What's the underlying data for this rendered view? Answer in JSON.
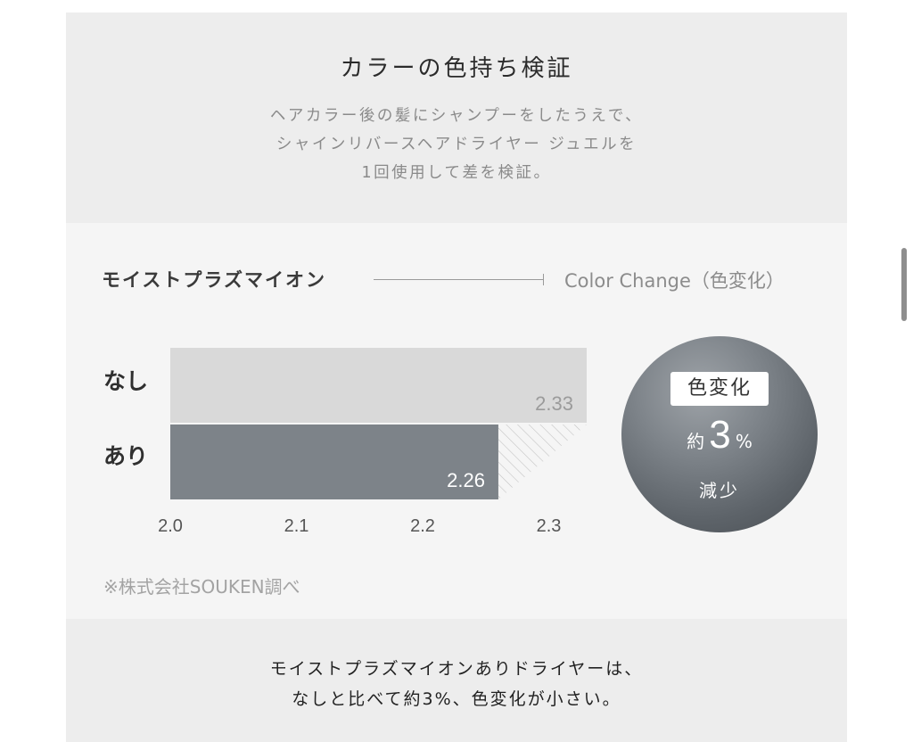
{
  "header": {
    "title": "カラーの色持ち検証",
    "subtitle_lines": [
      "ヘアカラー後の髪にシャンプーをしたうえで、",
      "シャインリバースヘアドライヤー ジュエルを",
      "1回使用して差を検証。"
    ]
  },
  "legend": {
    "left": "モイストプラズマイオン",
    "right": "Color Change（色変化）"
  },
  "chart_data": {
    "type": "bar",
    "orientation": "horizontal",
    "categories": [
      "なし",
      "あり"
    ],
    "values": [
      2.33,
      2.26
    ],
    "value_labels": [
      "2.33",
      "2.26"
    ],
    "x_ticks": [
      "2.0",
      "2.1",
      "2.2",
      "2.3"
    ],
    "xlim": [
      2.0,
      2.33
    ],
    "bar_colors": [
      "#d9d9d9",
      "#7d8389"
    ],
    "label_colors": [
      "#9b9b9b",
      "#ffffff"
    ],
    "difference_hatched": true
  },
  "source_note": "※株式会社SOUKEN調べ",
  "callout": {
    "badge": "色変化",
    "prefix": "約",
    "value": "3",
    "unit": "%",
    "suffix": "減少"
  },
  "conclusion_lines": [
    "モイストプラズマイオンありドライヤーは、",
    "なしと比べて約3%、色変化が小さい。"
  ]
}
